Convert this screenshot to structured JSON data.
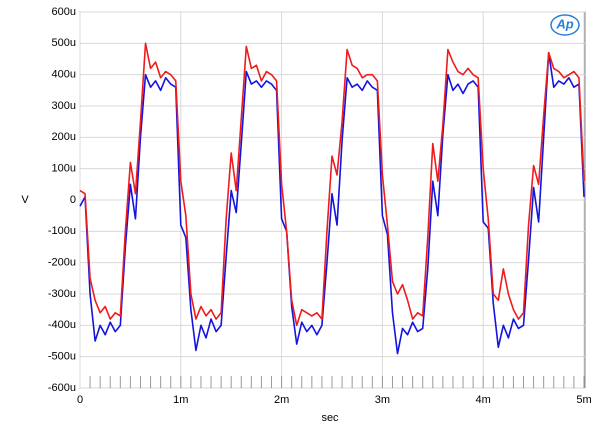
{
  "chart_data": {
    "type": "line",
    "logo": "Ap",
    "xlabel": "sec",
    "ylabel": "V",
    "xlim": [
      0,
      0.00501
    ],
    "ylim": [
      -0.0006,
      0.0006
    ],
    "xticks": [
      0,
      {
        "value": 0.001,
        "label": "1m"
      },
      {
        "value": 0.002,
        "label": "2m"
      },
      {
        "value": 0.003,
        "label": "3m"
      },
      {
        "value": 0.004,
        "label": "4m"
      },
      {
        "value": 0.005,
        "label": "5m"
      }
    ],
    "yticks": [
      {
        "value": -0.0006,
        "label": "-600u"
      },
      {
        "value": -0.0005,
        "label": "-500u"
      },
      {
        "value": -0.0004,
        "label": "-400u"
      },
      {
        "value": -0.0003,
        "label": "-300u"
      },
      {
        "value": -0.0002,
        "label": "-200u"
      },
      {
        "value": -0.0001,
        "label": "-100u"
      },
      0,
      {
        "value": 0.0001,
        "label": "100u"
      },
      {
        "value": 0.0002,
        "label": "200u"
      },
      {
        "value": 0.0003,
        "label": "300u"
      },
      {
        "value": 0.0004,
        "label": "400u"
      },
      {
        "value": 0.0005,
        "label": "500u"
      },
      {
        "value": 0.0006,
        "label": "600u"
      }
    ],
    "grid": true,
    "x": [
      0,
      5e-05,
      0.0001,
      0.00015,
      0.0002,
      0.00025,
      0.0003,
      0.00035,
      0.0004,
      0.00045,
      0.0005,
      0.00055,
      0.0006,
      0.00065,
      0.0007,
      0.00075,
      0.0008,
      0.00085,
      0.0009,
      0.00095,
      0.001,
      0.00105,
      0.0011,
      0.00115,
      0.0012,
      0.00125,
      0.0013,
      0.00135,
      0.0014,
      0.00145,
      0.0015,
      0.00155,
      0.0016,
      0.00165,
      0.0017,
      0.00175,
      0.0018,
      0.00185,
      0.0019,
      0.00195,
      0.002,
      0.00205,
      0.0021,
      0.00215,
      0.0022,
      0.00225,
      0.0023,
      0.00235,
      0.0024,
      0.00245,
      0.0025,
      0.00255,
      0.0026,
      0.00265,
      0.0027,
      0.00275,
      0.0028,
      0.00285,
      0.0029,
      0.00295,
      0.003,
      0.00305,
      0.0031,
      0.00315,
      0.0032,
      0.00325,
      0.0033,
      0.00335,
      0.0034,
      0.00345,
      0.0035,
      0.00355,
      0.0036,
      0.00365,
      0.0037,
      0.00375,
      0.0038,
      0.00385,
      0.0039,
      0.00395,
      0.004,
      0.00405,
      0.0041,
      0.00415,
      0.0042,
      0.00425,
      0.0043,
      0.00435,
      0.0044,
      0.00445,
      0.0045,
      0.00455,
      0.0046,
      0.00465,
      0.0047,
      0.00475,
      0.0048,
      0.00485,
      0.0049,
      0.00495,
      0.005
    ],
    "series": [
      {
        "color": "#1414e0",
        "values": [
          -2e-05,
          1e-05,
          -0.0003,
          -0.00045,
          -0.0004,
          -0.00043,
          -0.00039,
          -0.00042,
          -0.0004,
          -0.00015,
          5e-05,
          -6e-05,
          0.0002,
          0.0004,
          0.00036,
          0.00038,
          0.00035,
          0.00039,
          0.00037,
          0.00036,
          -8e-05,
          -0.00012,
          -0.00035,
          -0.00048,
          -0.0004,
          -0.00044,
          -0.00038,
          -0.00042,
          -0.0004,
          -0.00018,
          3e-05,
          -4e-05,
          0.00018,
          0.00041,
          0.00037,
          0.00038,
          0.00036,
          0.00038,
          0.00037,
          0.00035,
          -6e-05,
          -0.0001,
          -0.00034,
          -0.00046,
          -0.00039,
          -0.00042,
          -0.0004,
          -0.00043,
          -0.0004,
          -0.0002,
          2e-05,
          -8e-05,
          0.00019,
          0.00039,
          0.00036,
          0.00037,
          0.00035,
          0.00038,
          0.00036,
          0.00035,
          -5e-05,
          -0.00011,
          -0.00036,
          -0.00049,
          -0.00041,
          -0.00043,
          -0.00039,
          -0.00042,
          -0.00041,
          -0.00022,
          6e-05,
          -5e-05,
          0.00021,
          0.0004,
          0.00035,
          0.00037,
          0.00034,
          0.00037,
          0.00038,
          0.00036,
          -7e-05,
          -9e-05,
          -0.00033,
          -0.00047,
          -0.0004,
          -0.00044,
          -0.00038,
          -0.00041,
          -0.0004,
          -0.00019,
          4e-05,
          -7e-05,
          0.0002,
          0.00047,
          0.00036,
          0.00038,
          0.00037,
          0.00039,
          0.00036,
          0.00037,
          1e-05
        ]
      },
      {
        "color": "#ee1c1c",
        "values": [
          3e-05,
          2e-05,
          -0.00025,
          -0.00032,
          -0.00036,
          -0.00034,
          -0.00038,
          -0.00036,
          -0.00037,
          -0.0001,
          0.00012,
          2e-05,
          0.00025,
          0.0005,
          0.00042,
          0.00044,
          0.00039,
          0.00041,
          0.0004,
          0.00038,
          6e-05,
          -5e-05,
          -0.0003,
          -0.00038,
          -0.00034,
          -0.00037,
          -0.00035,
          -0.00038,
          -0.00036,
          -6e-05,
          0.00015,
          3e-05,
          0.00026,
          0.00049,
          0.00042,
          0.00043,
          0.00038,
          0.00041,
          0.0004,
          0.00038,
          5e-05,
          -0.0001,
          -0.00032,
          -0.0004,
          -0.00035,
          -0.00036,
          -0.00037,
          -0.00036,
          -0.00038,
          -0.0001,
          0.00014,
          8e-05,
          0.00025,
          0.00048,
          0.00043,
          0.00042,
          0.00039,
          0.0004,
          0.0004,
          0.00038,
          8e-05,
          -8e-05,
          -0.00026,
          -0.0003,
          -0.00027,
          -0.00032,
          -0.00038,
          -0.00036,
          -0.00037,
          -0.00012,
          0.00018,
          6e-05,
          0.00024,
          0.00048,
          0.00044,
          0.00041,
          0.0004,
          0.00042,
          0.0004,
          0.00039,
          0.0001,
          -6e-05,
          -0.0003,
          -0.00032,
          -0.00022,
          -0.0003,
          -0.00035,
          -0.00038,
          -0.00036,
          -8e-05,
          0.00011,
          5e-05,
          0.00027,
          0.00047,
          0.00042,
          0.00041,
          0.00039,
          0.0004,
          0.00041,
          0.00039,
          6e-05
        ]
      }
    ]
  }
}
